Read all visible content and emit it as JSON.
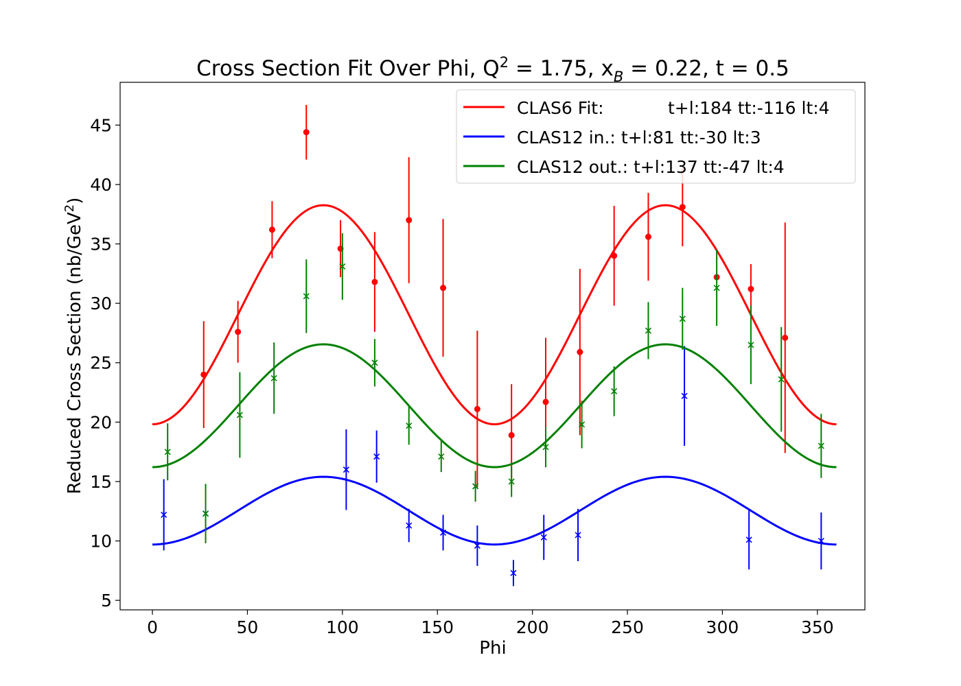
{
  "chart_data": {
    "type": "scatter",
    "title": {
      "prefix": "Cross Section Fit Over Phi, Q",
      "q_sup": "2",
      "q_value": " = 1.75, x",
      "xb_sub": "B",
      "rest": " = 0.22, t = 0.5"
    },
    "xlabel": "Phi",
    "ylabel": {
      "main": "Reduced Cross Section (nb/GeV",
      "sup": "2",
      "close": ")"
    },
    "xlim": [
      -17,
      375
    ],
    "ylim": [
      4.2,
      48.6
    ],
    "xticks": [
      0,
      50,
      100,
      150,
      200,
      250,
      300,
      350
    ],
    "yticks": [
      5,
      10,
      15,
      20,
      25,
      30,
      35,
      40,
      45
    ],
    "legend_position": "top-right",
    "series": [
      {
        "key": "clas6",
        "legend_name": "CLAS6 Fit:",
        "legend_params": "t+l:184 tt:-116 lt:4",
        "color": "#ff0000",
        "marker": "circle",
        "fit": {
          "A": 29.04,
          "B": -9.22
        },
        "points": [
          {
            "x": 27,
            "y": 24.0,
            "err": 4.5
          },
          {
            "x": 45,
            "y": 27.6,
            "err": 2.6
          },
          {
            "x": 63,
            "y": 36.2,
            "err": 2.4
          },
          {
            "x": 81,
            "y": 44.4,
            "err": 2.3
          },
          {
            "x": 99,
            "y": 34.6,
            "err": 2.4
          },
          {
            "x": 117,
            "y": 31.8,
            "err": 4.2
          },
          {
            "x": 135,
            "y": 37.0,
            "err": 5.3
          },
          {
            "x": 153,
            "y": 31.3,
            "err": 5.8
          },
          {
            "x": 171,
            "y": 21.1,
            "err": 6.6
          },
          {
            "x": 189,
            "y": 18.9,
            "err": 4.3
          },
          {
            "x": 207,
            "y": 21.7,
            "err": 5.4
          },
          {
            "x": 225,
            "y": 25.9,
            "err": 7.0
          },
          {
            "x": 243,
            "y": 34.0,
            "err": 4.2
          },
          {
            "x": 261,
            "y": 35.6,
            "err": 3.7
          },
          {
            "x": 279,
            "y": 38.1,
            "err": 3.3
          },
          {
            "x": 297,
            "y": 32.2,
            "err": 0
          },
          {
            "x": 315,
            "y": 31.2,
            "err": 2.1
          },
          {
            "x": 333,
            "y": 27.1,
            "err": 9.7
          }
        ]
      },
      {
        "key": "clas12_in",
        "legend_name": "CLAS12 in.:",
        "legend_params": "t+l:81 tt:-30 lt:3",
        "color": "#0000ff",
        "marker": "x",
        "fit": {
          "A": 12.55,
          "B": -2.85
        },
        "points": [
          {
            "x": 6,
            "y": 12.2,
            "err": 3.0
          },
          {
            "x": 28,
            "y": 12.3,
            "err": 0
          },
          {
            "x": 102,
            "y": 16.0,
            "err": 3.4
          },
          {
            "x": 118,
            "y": 17.1,
            "err": 2.2
          },
          {
            "x": 135,
            "y": 11.3,
            "err": 1.4
          },
          {
            "x": 153,
            "y": 10.7,
            "err": 1.5
          },
          {
            "x": 171,
            "y": 9.6,
            "err": 1.7
          },
          {
            "x": 190,
            "y": 7.3,
            "err": 1.1
          },
          {
            "x": 206,
            "y": 10.3,
            "err": 1.9
          },
          {
            "x": 224,
            "y": 10.5,
            "err": 2.2
          },
          {
            "x": 280,
            "y": 22.2,
            "err": 4.2
          },
          {
            "x": 314,
            "y": 10.1,
            "err": 2.5
          },
          {
            "x": 352,
            "y": 10.0,
            "err": 2.4
          }
        ]
      },
      {
        "key": "clas12_out",
        "legend_name": "CLAS12 out.:",
        "legend_params": "t+l:137 tt:-47 lt:4",
        "color": "#008000",
        "marker": "x",
        "fit": {
          "A": 21.38,
          "B": -5.17
        },
        "points": [
          {
            "x": 8,
            "y": 17.5,
            "err": 2.4
          },
          {
            "x": 28,
            "y": 12.3,
            "err": 2.5
          },
          {
            "x": 46,
            "y": 20.6,
            "err": 3.6
          },
          {
            "x": 64,
            "y": 23.7,
            "err": 3.0
          },
          {
            "x": 81,
            "y": 30.6,
            "err": 3.1
          },
          {
            "x": 100,
            "y": 33.1,
            "err": 2.8
          },
          {
            "x": 117,
            "y": 25.0,
            "err": 2.0
          },
          {
            "x": 135,
            "y": 19.7,
            "err": 1.6
          },
          {
            "x": 152,
            "y": 17.1,
            "err": 1.3
          },
          {
            "x": 170,
            "y": 14.6,
            "err": 1.3
          },
          {
            "x": 189,
            "y": 15.0,
            "err": 1.3
          },
          {
            "x": 207,
            "y": 17.9,
            "err": 1.7
          },
          {
            "x": 226,
            "y": 19.8,
            "err": 2.0
          },
          {
            "x": 243,
            "y": 22.6,
            "err": 2.1
          },
          {
            "x": 261,
            "y": 27.7,
            "err": 2.4
          },
          {
            "x": 279,
            "y": 28.7,
            "err": 2.6
          },
          {
            "x": 297,
            "y": 31.3,
            "err": 3.2
          },
          {
            "x": 315,
            "y": 26.5,
            "err": 3.3
          },
          {
            "x": 331,
            "y": 23.6,
            "err": 4.4
          },
          {
            "x": 352,
            "y": 18.0,
            "err": 2.7
          }
        ]
      }
    ]
  }
}
